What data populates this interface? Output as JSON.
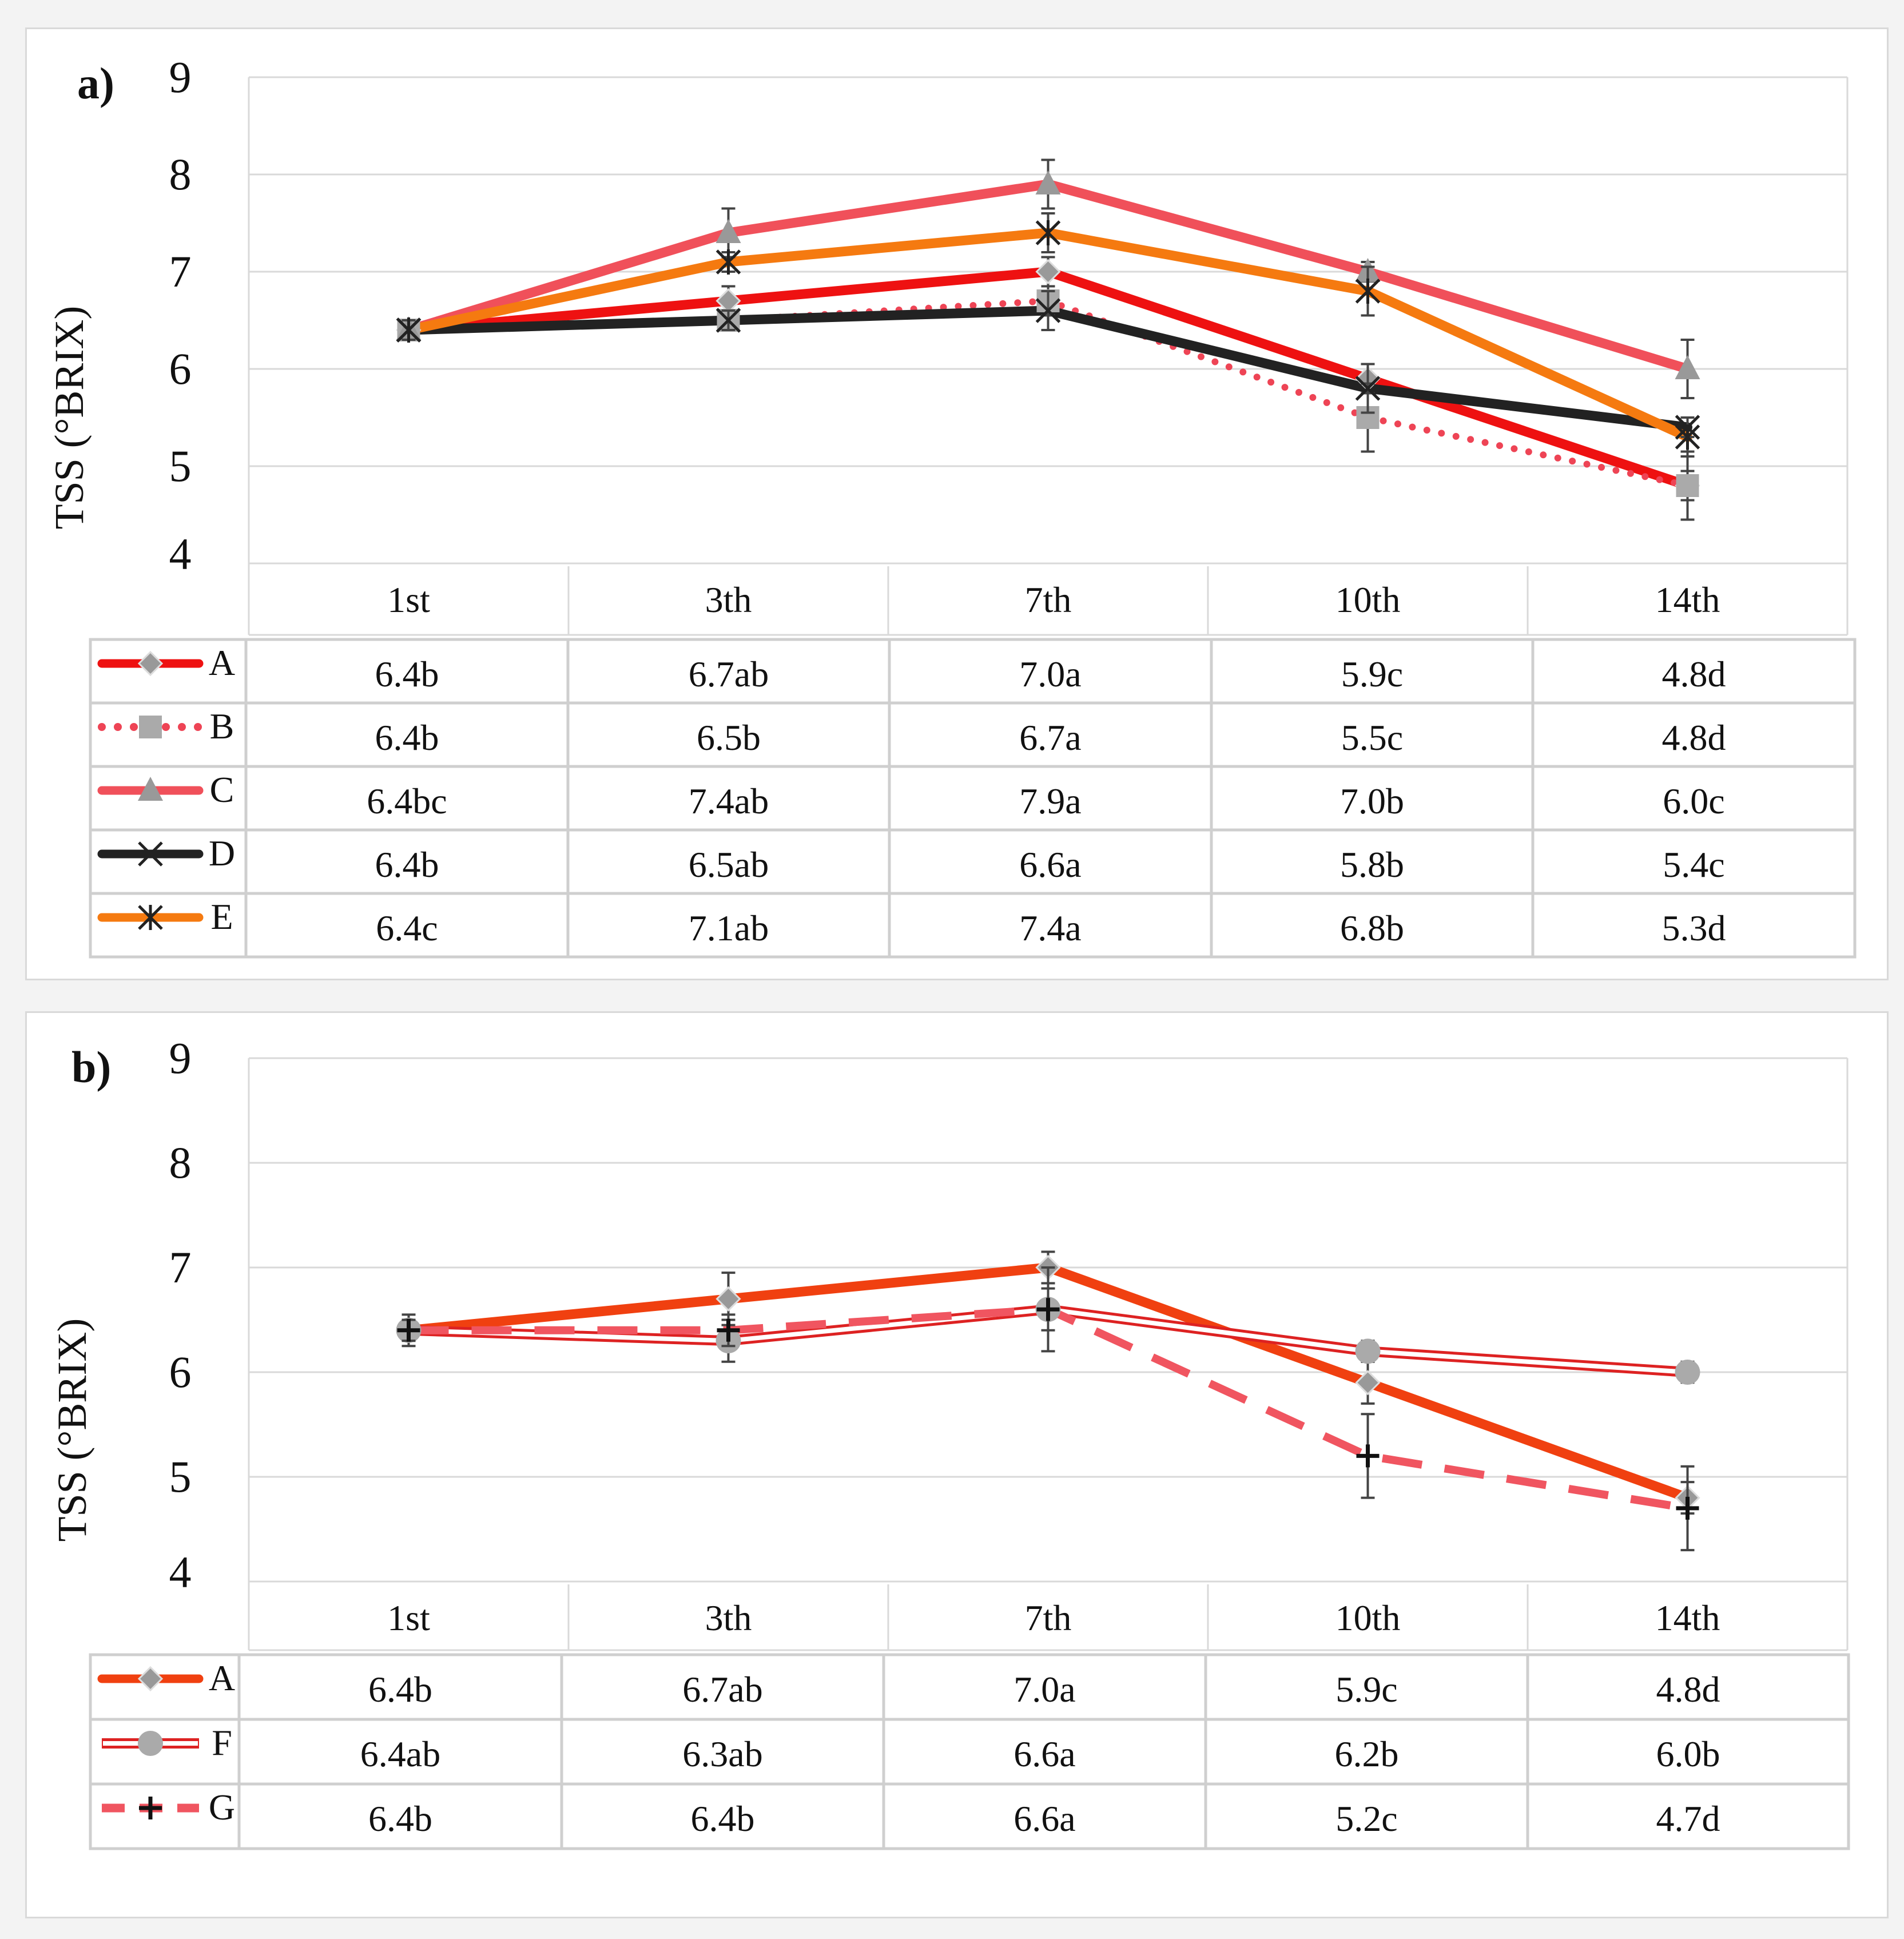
{
  "chart_data": [
    {
      "type": "line",
      "panel_label": "a)",
      "ylabel": "TSS (°BRIX)",
      "xlabel": "",
      "categories": [
        "1st",
        "3th",
        "7th",
        "10th",
        "14th"
      ],
      "ylim": [
        4,
        9
      ],
      "yticks": [
        4,
        5,
        6,
        7,
        8,
        9
      ],
      "grid": true,
      "legend": "data-table",
      "series": [
        {
          "name": "A",
          "color": "#ee1111",
          "style": "solid-thick",
          "marker": "diamond",
          "marker_color": "#999999",
          "values": [
            6.4,
            6.7,
            7.0,
            5.9,
            4.8
          ],
          "error": [
            0.1,
            0.15,
            0.15,
            0.15,
            0.15
          ],
          "labels": [
            "6.4b",
            "6.7ab",
            "7.0a",
            "5.9c",
            "4.8d"
          ]
        },
        {
          "name": "B",
          "color": "#ee4455",
          "style": "dotted",
          "marker": "square",
          "marker_color": "#aaaaaa",
          "values": [
            6.4,
            6.5,
            6.7,
            5.5,
            4.8
          ],
          "error": [
            0.1,
            0.1,
            0.15,
            0.35,
            0.35
          ],
          "labels": [
            "6.4b",
            "6.5b",
            "6.7a",
            "5.5c",
            "4.8d"
          ]
        },
        {
          "name": "C",
          "color": "#f0505a",
          "style": "solid-thick",
          "marker": "triangle",
          "marker_color": "#999999",
          "values": [
            6.4,
            7.4,
            7.9,
            7.0,
            6.0
          ],
          "error": [
            0.1,
            0.25,
            0.25,
            0.1,
            0.3
          ],
          "labels": [
            "6.4bc",
            "7.4ab",
            "7.9a",
            "7.0b",
            "6.0c"
          ]
        },
        {
          "name": "D",
          "color": "#222222",
          "style": "solid-thick",
          "marker": "x",
          "marker_color": "#222222",
          "values": [
            6.4,
            6.5,
            6.6,
            5.8,
            5.4
          ],
          "error": [
            0.1,
            0.1,
            0.2,
            0.25,
            0.1
          ],
          "labels": [
            "6.4b",
            "6.5ab",
            "6.6a",
            "5.8b",
            "5.4c"
          ]
        },
        {
          "name": "E",
          "color": "#f57a10",
          "style": "solid-thick",
          "marker": "asterisk",
          "marker_color": "#222222",
          "values": [
            6.4,
            7.1,
            7.4,
            6.8,
            5.3
          ],
          "error": [
            0.1,
            0.1,
            0.2,
            0.25,
            0.2
          ],
          "labels": [
            "6.4c",
            "7.1ab",
            "7.4a",
            "6.8b",
            "5.3d"
          ]
        }
      ]
    },
    {
      "type": "line",
      "panel_label": "b)",
      "ylabel": "TSS (°BRIX)",
      "xlabel": "",
      "categories": [
        "1st",
        "3th",
        "7th",
        "10th",
        "14th"
      ],
      "ylim": [
        4,
        9
      ],
      "yticks": [
        4,
        5,
        6,
        7,
        8,
        9
      ],
      "grid": true,
      "legend": "data-table",
      "series": [
        {
          "name": "A",
          "color": "#f04010",
          "style": "solid-thick",
          "marker": "diamond",
          "marker_color": "#999999",
          "values": [
            6.4,
            6.7,
            7.0,
            5.9,
            4.8
          ],
          "error": [
            0.15,
            0.25,
            0.15,
            0.2,
            0.15
          ],
          "labels": [
            "6.4b",
            "6.7ab",
            "7.0a",
            "5.9c",
            "4.8d"
          ]
        },
        {
          "name": "F",
          "color": "#dd2222",
          "style": "double",
          "marker": "circle",
          "marker_color": "#aaaaaa",
          "values": [
            6.4,
            6.3,
            6.6,
            6.2,
            6.0
          ],
          "error": [
            0.1,
            0.2,
            0.2,
            0.1,
            0.1
          ],
          "labels": [
            "6.4ab",
            "6.3ab",
            "6.6a",
            "6.2b",
            "6.0b"
          ]
        },
        {
          "name": "G",
          "color": "#f05560",
          "style": "dashed",
          "marker": "plus",
          "marker_color": "#111111",
          "values": [
            6.4,
            6.4,
            6.6,
            5.2,
            4.7
          ],
          "error": [
            0.1,
            0.15,
            0.4,
            0.4,
            0.4
          ],
          "labels": [
            "6.4b",
            "6.4b",
            "6.6a",
            "5.2c",
            "4.7d"
          ]
        }
      ]
    }
  ]
}
